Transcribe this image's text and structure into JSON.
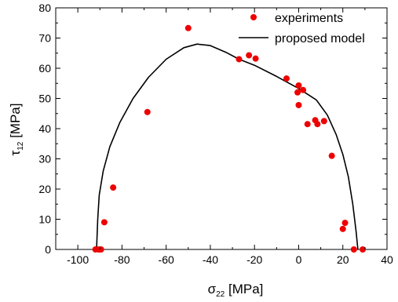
{
  "chart_data": {
    "type": "scatter",
    "xlim": [
      -110,
      40
    ],
    "ylim": [
      0,
      80
    ],
    "x_ticks": [
      -100,
      -80,
      -60,
      -40,
      -20,
      0,
      20,
      40
    ],
    "y_ticks": [
      0,
      10,
      20,
      30,
      40,
      50,
      60,
      70,
      80
    ],
    "x_tick_labels": [
      "-100",
      "-80",
      "-60",
      "-40",
      "-20",
      "0",
      "20",
      "40"
    ],
    "y_tick_labels": [
      "0",
      "10",
      "20",
      "30",
      "40",
      "50",
      "60",
      "70",
      "80"
    ],
    "xlabel_symbol": "σ",
    "xlabel_sub": "22",
    "xlabel_unit": " [MPa]",
    "ylabel_symbol": "τ",
    "ylabel_sub": "12",
    "ylabel_unit": " [MPa]",
    "grid": false,
    "legend_position": "top-right",
    "series": [
      {
        "name": "experiments",
        "kind": "scatter",
        "color": "#ee0000",
        "points": [
          [
            -92,
            0
          ],
          [
            -90.5,
            0
          ],
          [
            -89.5,
            0
          ],
          [
            -88,
            9
          ],
          [
            -84,
            20.5
          ],
          [
            -68.5,
            45.5
          ],
          [
            -50,
            73.3
          ],
          [
            -27,
            63
          ],
          [
            -22.5,
            64.3
          ],
          [
            -19.5,
            63.2
          ],
          [
            -5.5,
            56.6
          ],
          [
            -0.5,
            52
          ],
          [
            0,
            54.3
          ],
          [
            0,
            47.8
          ],
          [
            2,
            52.8
          ],
          [
            4,
            41.5
          ],
          [
            7.5,
            42.8
          ],
          [
            8.5,
            41.5
          ],
          [
            11.5,
            42.5
          ],
          [
            15,
            31
          ],
          [
            20,
            6.8
          ],
          [
            21,
            8.8
          ],
          [
            25,
            0
          ],
          [
            29,
            0
          ]
        ]
      },
      {
        "name": "proposed model",
        "kind": "line",
        "color": "#000000",
        "points": [
          [
            -91.5,
            0
          ],
          [
            -91,
            10
          ],
          [
            -90.3,
            18
          ],
          [
            -88.5,
            26
          ],
          [
            -85.5,
            34
          ],
          [
            -81,
            42
          ],
          [
            -75,
            50
          ],
          [
            -68,
            57
          ],
          [
            -60,
            63
          ],
          [
            -52,
            66.8
          ],
          [
            -46,
            68
          ],
          [
            -40,
            67.5
          ],
          [
            -33,
            65.3
          ],
          [
            -27,
            63
          ],
          [
            -20,
            61
          ],
          [
            -10,
            57.3
          ],
          [
            0,
            53.3
          ],
          [
            8,
            49.5
          ],
          [
            13,
            44.5
          ],
          [
            17,
            38
          ],
          [
            20,
            31.5
          ],
          [
            22.5,
            24
          ],
          [
            24.5,
            15
          ],
          [
            26,
            6
          ],
          [
            26.8,
            0
          ]
        ]
      }
    ]
  }
}
